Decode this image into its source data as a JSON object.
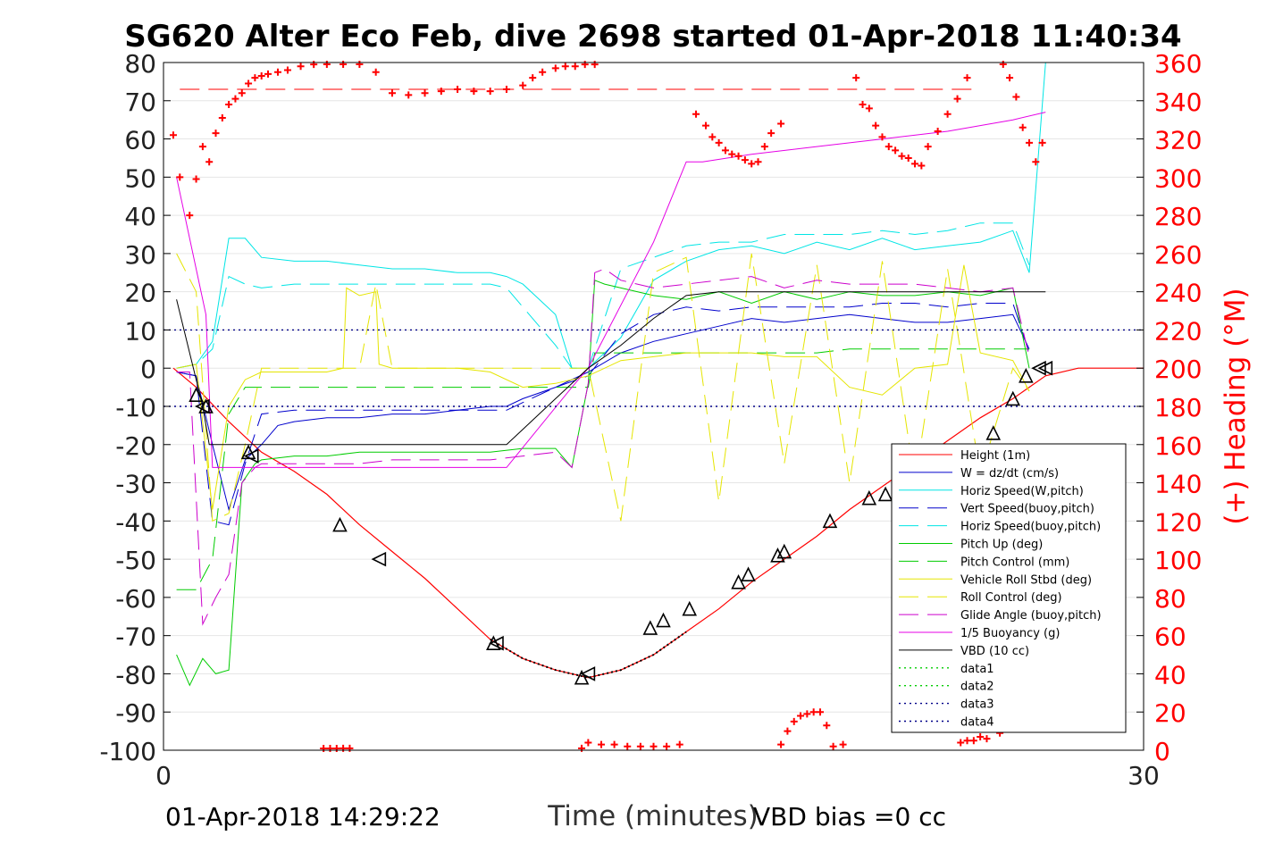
{
  "chart_data": {
    "type": "line",
    "title": "SG620 Alter Eco Feb, dive 2698 started 01-Apr-2018 11:40:34",
    "xlabel": "Time (minutes)",
    "ylabel_right": "(+) Heading (°M)",
    "xlim": [
      0,
      30
    ],
    "ylim": [
      -100,
      80
    ],
    "y2lim": [
      0,
      360
    ],
    "x_ticks": [
      0,
      30
    ],
    "y_ticks": [
      80,
      70,
      60,
      50,
      40,
      30,
      20,
      10,
      0,
      -10,
      -20,
      -30,
      -40,
      -50,
      -60,
      -70,
      -80,
      -90,
      -100
    ],
    "y2_ticks": [
      360,
      340,
      320,
      300,
      280,
      260,
      240,
      220,
      200,
      180,
      160,
      140,
      120,
      100,
      80,
      60,
      40,
      20,
      0
    ],
    "grid": true,
    "legend_position": "bottom-right",
    "footer_left": "01-Apr-2018 14:29:22",
    "footer_right": "VBD bias =0 cc",
    "colors": {
      "height": "#ff0000",
      "w": "#0000cc",
      "horiz": "#00e5e5",
      "vert_buoy": "#0000cc",
      "horiz_buoy": "#00e5e5",
      "pitch": "#00cc00",
      "pitch_ctrl": "#00cc00",
      "roll": "#e5e500",
      "roll_ctrl": "#e5e500",
      "glide": "#cc00cc",
      "buoy": "#e500e5",
      "vbd": "#000000",
      "data1": "#00cc00",
      "data3": "#000088",
      "heading": "#ff0000"
    },
    "series": [
      {
        "name": "Height (1m)",
        "key": "height",
        "style": "solid",
        "x": [
          0.3,
          1,
          2,
          3,
          4,
          5,
          6,
          7,
          8,
          9,
          10,
          11,
          12,
          13,
          14,
          15,
          16,
          17,
          18,
          19,
          20,
          21,
          22,
          23,
          24,
          25,
          26,
          27,
          28,
          29,
          30
        ],
        "y": [
          0,
          -5,
          -14,
          -22,
          -27,
          -33,
          -41,
          -48,
          -55,
          -63,
          -71,
          -76,
          -79,
          -81,
          -79,
          -75,
          -69,
          -63,
          -56,
          -50,
          -44,
          -37,
          -31,
          -25,
          -19,
          -13,
          -8,
          -2,
          0,
          0,
          0
        ]
      },
      {
        "name": "W = dz/dt (cm/s)",
        "key": "w",
        "style": "solid",
        "x": [
          0.4,
          1,
          1.5,
          2,
          2.5,
          3,
          3.5,
          4,
          5,
          6,
          7,
          8,
          9,
          10,
          10.5,
          11,
          12,
          13,
          14,
          15,
          16,
          17,
          18,
          19,
          20,
          21,
          22,
          23,
          24,
          25,
          26,
          26.5
        ],
        "y": [
          -1,
          -2,
          -20,
          -37,
          -24,
          -20,
          -15,
          -14,
          -13,
          -13,
          -12,
          -12,
          -11,
          -10,
          -10,
          -8,
          -5,
          -1,
          4,
          7,
          9,
          11,
          13,
          12,
          13,
          14,
          13,
          12,
          12,
          13,
          14,
          5
        ]
      },
      {
        "name": "Horiz Speed(W,pitch)",
        "key": "horiz",
        "style": "solid",
        "x": [
          0.4,
          1,
          1.5,
          2,
          2.5,
          3,
          4,
          5,
          6,
          7,
          8,
          9,
          10,
          10.5,
          11,
          12,
          12.5,
          13,
          14,
          15,
          16,
          17,
          18,
          19,
          20,
          21,
          22,
          23,
          24,
          25,
          26,
          26.5,
          27
        ],
        "y": [
          0,
          1,
          7,
          34,
          34,
          29,
          28,
          28,
          27,
          26,
          26,
          25,
          25,
          24,
          22,
          14,
          0,
          0,
          8,
          23,
          28,
          31,
          32,
          30,
          33,
          31,
          34,
          31,
          32,
          33,
          36,
          25,
          80
        ]
      },
      {
        "name": "Vert Speed(buoy,pitch)",
        "key": "vert_buoy",
        "style": "dashed",
        "x": [
          0.4,
          1,
          1.5,
          2,
          2.5,
          3,
          4,
          5,
          6,
          7,
          8,
          9,
          10,
          10.5,
          11,
          12,
          13,
          14,
          15,
          16,
          17,
          18,
          19,
          20,
          21,
          22,
          23,
          24,
          25,
          26,
          26.5
        ],
        "y": [
          -1,
          -2,
          -40,
          -41,
          -25,
          -12,
          -11,
          -11,
          -11,
          -11,
          -11,
          -11,
          -11,
          -11,
          -9,
          -5,
          -2,
          9,
          14,
          16,
          15,
          16,
          16,
          16,
          16,
          17,
          17,
          16,
          17,
          17,
          4
        ]
      },
      {
        "name": "Horiz Speed(buoy,pitch)",
        "key": "horiz_buoy",
        "style": "dashed",
        "x": [
          0.4,
          1,
          1.5,
          2,
          2.5,
          3,
          4,
          5,
          6,
          7,
          8,
          9,
          10,
          10.5,
          11,
          12,
          12.5,
          13,
          14,
          15,
          16,
          17,
          18,
          19,
          20,
          21,
          22,
          23,
          24,
          25,
          26,
          26.5
        ],
        "y": [
          0,
          1,
          5,
          24,
          22,
          21,
          22,
          22,
          22,
          22,
          22,
          22,
          22,
          21,
          16,
          6,
          0,
          0,
          26,
          29,
          32,
          33,
          33,
          35,
          35,
          35,
          36,
          35,
          36,
          38,
          38,
          27
        ]
      },
      {
        "name": "Pitch Up (deg)",
        "key": "pitch",
        "style": "solid",
        "x": [
          0.4,
          0.8,
          1.2,
          1.6,
          2,
          2.4,
          2.8,
          3,
          4,
          5,
          6,
          7,
          8,
          9,
          10,
          11,
          12,
          12.5,
          13,
          13.2,
          13.5,
          14,
          15,
          16,
          17,
          18,
          19,
          20,
          21,
          22,
          23,
          24,
          25,
          26,
          26.5
        ],
        "y": [
          -75,
          -83,
          -76,
          -80,
          -79,
          -30,
          -25,
          -24,
          -23,
          -23,
          -22,
          -22,
          -22,
          -22,
          -22,
          -21,
          -21,
          -26,
          -4,
          23,
          22,
          21,
          19,
          18,
          20,
          17,
          20,
          18,
          20,
          19,
          19,
          20,
          19,
          21,
          0
        ]
      },
      {
        "name": "Pitch Control (mm)",
        "key": "pitch_ctrl",
        "style": "dashed",
        "x": [
          0.4,
          1,
          1.5,
          2,
          2.5,
          3,
          4,
          5,
          6,
          7,
          8,
          9,
          10,
          11,
          12,
          13,
          13.2,
          14,
          15,
          16,
          17,
          18,
          19,
          20,
          21,
          22,
          23,
          24,
          25,
          26,
          26.5
        ],
        "y": [
          -58,
          -58,
          -50,
          -12,
          -5,
          -5,
          -5,
          -5,
          -5,
          -5,
          -5,
          -5,
          -5,
          -5,
          -5,
          -5,
          4,
          4,
          4,
          4,
          4,
          4,
          4,
          4,
          5,
          5,
          5,
          5,
          5,
          5,
          5
        ]
      },
      {
        "name": "Vehicle Roll Stbd (deg)",
        "key": "roll",
        "style": "solid",
        "x": [
          0.4,
          1,
          1.5,
          2,
          2.5,
          3,
          4,
          5,
          5.5,
          5.6,
          6,
          6.5,
          6.6,
          7,
          8,
          9,
          10,
          11,
          12,
          13,
          14,
          15,
          16,
          17,
          18,
          19,
          20,
          21,
          22,
          23,
          24,
          24.5,
          25,
          26,
          26.5
        ],
        "y": [
          0,
          1,
          -37,
          -10,
          -3,
          -1,
          -1,
          -1,
          0,
          21,
          19,
          20,
          1,
          0,
          0,
          0,
          -1,
          -5,
          -4,
          -2,
          2,
          3,
          4,
          4,
          4,
          3,
          3,
          -5,
          -7,
          0,
          1,
          27,
          4,
          2,
          -6
        ]
      },
      {
        "name": "Roll Control (deg)",
        "key": "roll_ctrl",
        "style": "dashed",
        "x": [
          0.4,
          1,
          1.5,
          2,
          2.5,
          3,
          4,
          5,
          6,
          6.5,
          7,
          8,
          9,
          10,
          11,
          12,
          13,
          14,
          15,
          16,
          17,
          18,
          19,
          20,
          21,
          22,
          23,
          24,
          25,
          26,
          26.5
        ],
        "y": [
          30,
          20,
          -40,
          -38,
          -20,
          0,
          0,
          0,
          0,
          22,
          0,
          0,
          0,
          0,
          0,
          0,
          0,
          -40,
          25,
          29,
          -35,
          30,
          -25,
          27,
          -30,
          28,
          -30,
          26,
          -28,
          0,
          -6
        ]
      },
      {
        "name": "Glide Angle (buoy,pitch)",
        "key": "glide",
        "style": "dashed",
        "x": [
          0.4,
          0.8,
          1.2,
          1.6,
          2,
          2.4,
          2.8,
          3,
          4,
          5,
          6,
          7,
          8,
          9,
          10,
          11,
          12,
          12.5,
          13,
          13.2,
          13.5,
          14,
          15,
          16,
          17,
          18,
          19,
          20,
          21,
          22,
          23,
          24,
          25,
          26,
          26.5
        ],
        "y": [
          -1,
          -1,
          -67,
          -60,
          -54,
          -30,
          -26,
          -25,
          -25,
          -25,
          -25,
          -24,
          -24,
          -24,
          -24,
          -23,
          -22,
          -26,
          -4,
          25,
          26,
          23,
          21,
          22,
          23,
          24,
          21,
          23,
          22,
          22,
          22,
          21,
          20,
          21,
          3
        ]
      },
      {
        "name": "1/5 Buoyancy (g)",
        "key": "buoy",
        "style": "solid",
        "x": [
          0.4,
          1.3,
          1.5,
          2,
          4,
          6,
          8,
          10,
          10.5,
          12.5,
          13,
          15,
          16,
          16.5,
          18,
          20,
          22,
          24,
          26,
          27
        ],
        "y": [
          50,
          14,
          -26,
          -26,
          -26,
          -26,
          -26,
          -26,
          -26,
          -5,
          0,
          33,
          54,
          54,
          56,
          58,
          60,
          62,
          65,
          67
        ]
      },
      {
        "name": "VBD (10 cc)",
        "key": "vbd",
        "style": "solid",
        "x": [
          0.4,
          1.2,
          1.4,
          2,
          4,
          6,
          8,
          10,
          10.5,
          11,
          12,
          13,
          14,
          15,
          16,
          17,
          18,
          20,
          22,
          24,
          26,
          27
        ],
        "y": [
          18,
          -10,
          -20,
          -20,
          -20,
          -20,
          -20,
          -20,
          -20,
          -16,
          -8,
          0,
          6,
          13,
          19,
          20,
          20,
          20,
          20,
          20,
          20,
          20
        ]
      },
      {
        "name": "data1",
        "key": "data1",
        "style": "dotted",
        "x": [],
        "y": []
      },
      {
        "name": "data2",
        "key": "data1",
        "style": "dotted",
        "x": [],
        "y": []
      },
      {
        "name": "data3",
        "key": "data3",
        "style": "dotted",
        "x": [
          0,
          30
        ],
        "y": [
          10,
          10
        ]
      },
      {
        "name": "data4",
        "key": "data3",
        "style": "dotted",
        "x": [
          0,
          30
        ],
        "y": [
          -10,
          -10
        ]
      }
    ],
    "markers": {
      "up": {
        "x": [
          1.0,
          1.3,
          2.6,
          5.4,
          10.1,
          12.8,
          14.9,
          15.3,
          16.1,
          17.6,
          17.9,
          18.8,
          19.0,
          20.4,
          21.6,
          22.1,
          23.5,
          24.0,
          25.4,
          26.0,
          26.4
        ],
        "y": [
          -7,
          -10,
          -22,
          -41,
          -72,
          -81,
          -68,
          -66,
          -63,
          -56,
          -54,
          -49,
          -48,
          -40,
          -34,
          -33,
          -25,
          -23,
          -17,
          -8,
          -2
        ]
      },
      "down": {
        "x": [
          1.2,
          2.7,
          6.6,
          10.2,
          13.0,
          26.8,
          27.0
        ],
        "y": [
          -10,
          -23,
          -50,
          -72,
          -80,
          0,
          0
        ]
      }
    },
    "heading": {
      "name": "Heading",
      "x": [
        0.3,
        0.5,
        0.8,
        1.0,
        1.2,
        1.4,
        1.6,
        1.8,
        2.0,
        2.2,
        2.4,
        2.6,
        2.8,
        3.0,
        3.2,
        3.5,
        3.8,
        4.2,
        4.6,
        5.0,
        5.5,
        6.0,
        6.5,
        7.0,
        7.5,
        8.0,
        8.5,
        9.0,
        9.5,
        10.0,
        10.5,
        11.0,
        11.3,
        11.6,
        12.0,
        12.3,
        12.6,
        12.9,
        13.2,
        4.9,
        5.1,
        5.3,
        5.5,
        5.7,
        12.8,
        13.0,
        13.4,
        13.8,
        14.2,
        14.6,
        15.0,
        15.4,
        15.8,
        16.3,
        16.6,
        16.8,
        17.0,
        17.2,
        17.4,
        17.6,
        17.8,
        18.0,
        18.2,
        18.4,
        18.6,
        18.9,
        18.9,
        19.1,
        19.3,
        19.5,
        19.7,
        19.9,
        20.1,
        20.3,
        20.5,
        20.8,
        21.2,
        21.4,
        21.6,
        21.8,
        22.0,
        22.2,
        22.4,
        22.6,
        22.8,
        23.0,
        23.2,
        23.4,
        23.7,
        24.0,
        24.3,
        24.6,
        24.4,
        24.6,
        24.8,
        25.0,
        25.2,
        25.6,
        25.7,
        25.9,
        26.1,
        26.3,
        26.5,
        26.7,
        26.9
      ],
      "y": [
        322,
        300,
        280,
        299,
        316,
        308,
        323,
        331,
        338,
        341,
        344,
        349,
        352,
        353,
        354,
        355,
        356,
        358,
        359,
        360,
        360,
        360,
        355,
        344,
        343,
        344,
        345,
        346,
        345,
        345,
        346,
        348,
        352,
        355,
        357,
        358,
        358,
        359,
        359,
        0,
        0,
        0,
        1,
        1,
        1,
        4,
        3,
        3,
        2,
        2,
        2,
        2,
        3,
        333,
        327,
        321,
        318,
        314,
        312,
        311,
        309,
        307,
        308,
        316,
        323,
        328,
        3,
        10,
        15,
        18,
        19,
        20,
        20,
        13,
        2,
        3,
        352,
        338,
        336,
        327,
        321,
        316,
        314,
        311,
        310,
        307,
        306,
        316,
        324,
        333,
        341,
        352,
        4,
        5,
        5,
        7,
        6,
        9,
        360,
        352,
        342,
        326,
        318,
        308,
        318
      ]
    }
  }
}
